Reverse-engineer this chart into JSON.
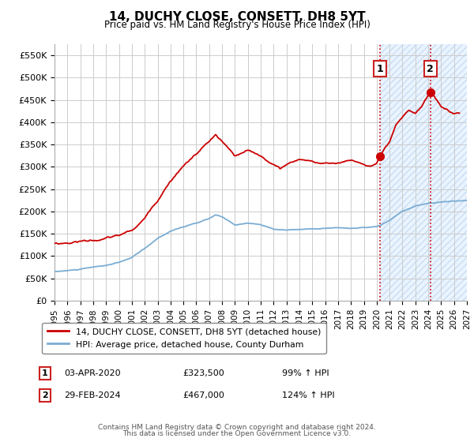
{
  "title": "14, DUCHY CLOSE, CONSETT, DH8 5YT",
  "subtitle": "Price paid vs. HM Land Registry's House Price Index (HPI)",
  "ylim": [
    0,
    575000
  ],
  "yticks": [
    0,
    50000,
    100000,
    150000,
    200000,
    250000,
    300000,
    350000,
    400000,
    450000,
    500000,
    550000
  ],
  "ytick_labels": [
    "£0",
    "£50K",
    "£100K",
    "£150K",
    "£200K",
    "£250K",
    "£300K",
    "£350K",
    "£400K",
    "£450K",
    "£500K",
    "£550K"
  ],
  "xmin_year": 1995,
  "xmax_year": 2027,
  "xtick_years": [
    1995,
    1996,
    1997,
    1998,
    1999,
    2000,
    2001,
    2002,
    2003,
    2004,
    2005,
    2006,
    2007,
    2008,
    2009,
    2010,
    2011,
    2012,
    2013,
    2014,
    2015,
    2016,
    2017,
    2018,
    2019,
    2020,
    2021,
    2022,
    2023,
    2024,
    2025,
    2026,
    2027
  ],
  "hpi_color": "#7aadd4",
  "price_color": "#cc0000",
  "marker1_year": 2020.25,
  "marker1_price": 323500,
  "marker1_label": "03-APR-2020",
  "marker1_pct": "99% ↑ HPI",
  "marker2_year": 2024.17,
  "marker2_price": 467000,
  "marker2_label": "29-FEB-2024",
  "marker2_pct": "124% ↑ HPI",
  "legend_line1": "14, DUCHY CLOSE, CONSETT, DH8 5YT (detached house)",
  "legend_line2": "HPI: Average price, detached house, County Durham",
  "footnote1": "Contains HM Land Registry data © Crown copyright and database right 2024.",
  "footnote2": "This data is licensed under the Open Government Licence v3.0.",
  "shaded_region_start": 2020.25,
  "shaded_region_end": 2027.0,
  "background_color": "#ffffff",
  "grid_color": "#cccccc"
}
